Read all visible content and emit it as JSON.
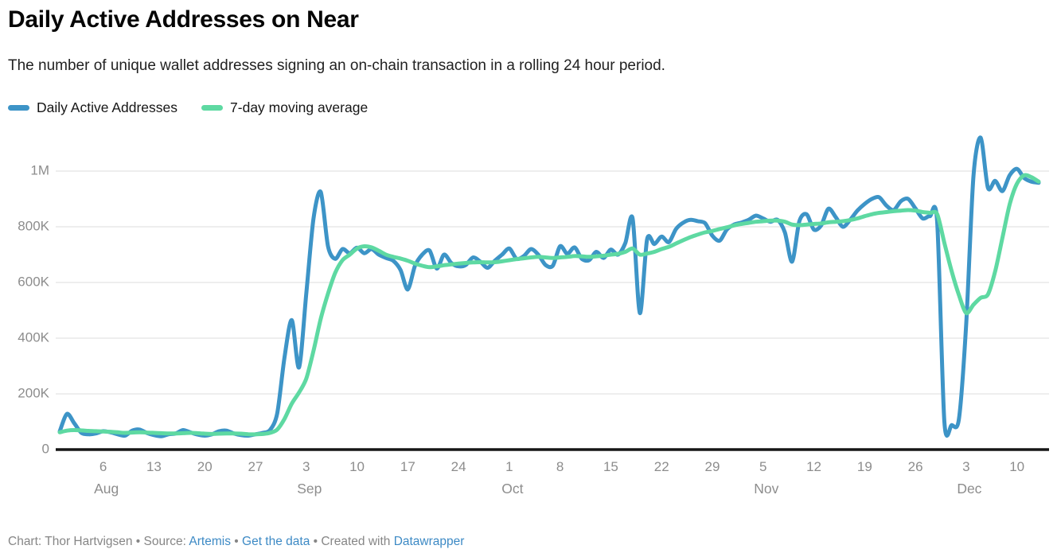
{
  "header": {
    "title": "Daily Active Addresses on Near",
    "subtitle": "The number of unique wallet addresses signing an on-chain transaction in a rolling 24 hour period."
  },
  "legend": {
    "items": [
      {
        "label": "Daily Active Addresses",
        "color": "#3d94c7"
      },
      {
        "label": "7-day moving average",
        "color": "#5ed9a2"
      }
    ]
  },
  "footer": {
    "prefix": "Chart: Thor Hartvigsen • Source: ",
    "source_link": "Artemis",
    "sep": " • ",
    "get_data_link": "Get the data",
    "created_with": " • Created with ",
    "datawrapper_link": "Datawrapper",
    "link_color": "#3d8ac5"
  },
  "chart_data": {
    "type": "line",
    "title": "Daily Active Addresses on Near",
    "subtitle": "The number of unique wallet addresses signing an on-chain transaction in a rolling 24 hour period.",
    "x_description": "daily values, Jul 31 through Dec 13",
    "values_unit": "thousands of addresses",
    "ylim_k": [
      0,
      1150
    ],
    "grid": "horizontal-only",
    "legend_position": "top-left",
    "y_ticks": [
      {
        "v": 0,
        "label": "0"
      },
      {
        "v": 200,
        "label": "200K"
      },
      {
        "v": 400,
        "label": "400K"
      },
      {
        "v": 600,
        "label": "600K"
      },
      {
        "v": 800,
        "label": "800K"
      },
      {
        "v": 1000,
        "label": "1M"
      }
    ],
    "x_ticks": [
      {
        "day": 6,
        "label": "6"
      },
      {
        "day": 13,
        "label": "13"
      },
      {
        "day": 20,
        "label": "20"
      },
      {
        "day": 27,
        "label": "27"
      },
      {
        "day": 34,
        "label": "3"
      },
      {
        "day": 41,
        "label": "10"
      },
      {
        "day": 48,
        "label": "17"
      },
      {
        "day": 55,
        "label": "24"
      },
      {
        "day": 62,
        "label": "1"
      },
      {
        "day": 69,
        "label": "8"
      },
      {
        "day": 76,
        "label": "15"
      },
      {
        "day": 83,
        "label": "22"
      },
      {
        "day": 90,
        "label": "29"
      },
      {
        "day": 97,
        "label": "5"
      },
      {
        "day": 104,
        "label": "12"
      },
      {
        "day": 111,
        "label": "19"
      },
      {
        "day": 118,
        "label": "26"
      },
      {
        "day": 125,
        "label": "3"
      },
      {
        "day": 132,
        "label": "10"
      }
    ],
    "month_labels": [
      {
        "day": 6,
        "label": "Aug"
      },
      {
        "day": 34,
        "label": "Sep"
      },
      {
        "day": 62,
        "label": "Oct"
      },
      {
        "day": 97,
        "label": "Nov"
      },
      {
        "day": 125,
        "label": "Dec"
      }
    ],
    "series": [
      {
        "name": "Daily Active Addresses",
        "color": "#3d94c7",
        "values": [
          65,
          128,
          95,
          60,
          55,
          58,
          66,
          62,
          55,
          50,
          68,
          72,
          60,
          52,
          48,
          55,
          58,
          70,
          62,
          54,
          50,
          55,
          66,
          68,
          58,
          52,
          50,
          55,
          60,
          70,
          130,
          330,
          465,
          295,
          560,
          830,
          925,
          730,
          685,
          720,
          705,
          725,
          705,
          720,
          700,
          688,
          678,
          645,
          575,
          660,
          700,
          715,
          650,
          700,
          670,
          658,
          663,
          690,
          675,
          653,
          678,
          700,
          722,
          685,
          695,
          720,
          700,
          663,
          660,
          730,
          703,
          726,
          685,
          680,
          710,
          688,
          718,
          700,
          742,
          830,
          490,
          755,
          738,
          765,
          745,
          792,
          815,
          825,
          820,
          813,
          768,
          750,
          790,
          808,
          815,
          825,
          840,
          830,
          818,
          825,
          780,
          675,
          820,
          845,
          790,
          805,
          865,
          835,
          800,
          825,
          858,
          882,
          900,
          906,
          876,
          860,
          892,
          900,
          866,
          830,
          838,
          820,
          100,
          88,
          110,
          450,
          980,
          1120,
          940,
          965,
          928,
          985,
          1008,
          975,
          962,
          958
        ]
      },
      {
        "name": "7-day moving average",
        "color": "#5ed9a2",
        "values": [
          62,
          68,
          70,
          69,
          67,
          66,
          65,
          64,
          62,
          60,
          61,
          62,
          61,
          60,
          59,
          58,
          58,
          59,
          60,
          59,
          57,
          56,
          57,
          58,
          58,
          57,
          55,
          55,
          56,
          60,
          72,
          110,
          165,
          205,
          255,
          355,
          470,
          560,
          635,
          680,
          700,
          722,
          730,
          726,
          714,
          700,
          692,
          686,
          678,
          668,
          660,
          655,
          658,
          662,
          665,
          668,
          670,
          672,
          673,
          672,
          673,
          676,
          680,
          684,
          687,
          690,
          692,
          690,
          688,
          690,
          692,
          695,
          694,
          692,
          694,
          696,
          700,
          703,
          710,
          722,
          700,
          704,
          710,
          720,
          728,
          740,
          752,
          763,
          772,
          780,
          785,
          792,
          798,
          805,
          810,
          814,
          818,
          820,
          822,
          822,
          818,
          808,
          806,
          808,
          810,
          812,
          816,
          818,
          820,
          824,
          830,
          838,
          845,
          850,
          853,
          856,
          858,
          860,
          858,
          853,
          850,
          846,
          742,
          640,
          555,
          490,
          520,
          545,
          557,
          640,
          760,
          880,
          955,
          985,
          978,
          962
        ]
      }
    ],
    "colors": {
      "grid": "#e9e9e9",
      "baseline": "#161616",
      "axis_text": "#8d8d8d"
    }
  }
}
